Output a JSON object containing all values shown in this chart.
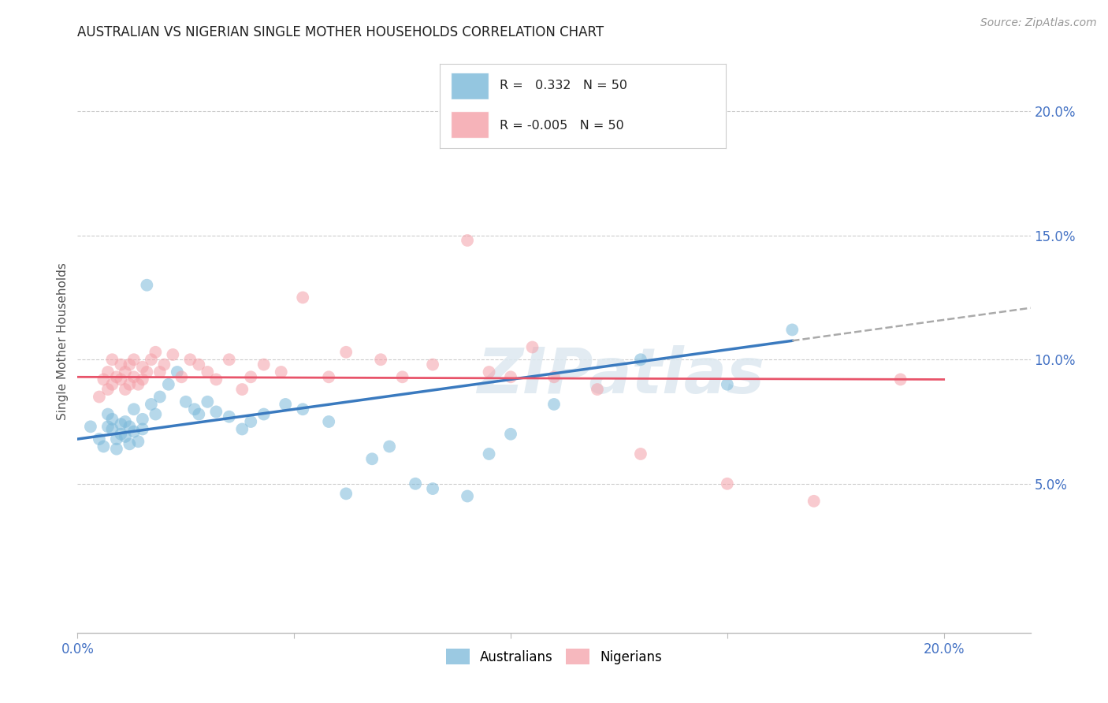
{
  "title": "AUSTRALIAN VS NIGERIAN SINGLE MOTHER HOUSEHOLDS CORRELATION CHART",
  "source": "Source: ZipAtlas.com",
  "ylabel": "Single Mother Households",
  "xlim": [
    0.0,
    0.22
  ],
  "ylim": [
    -0.01,
    0.225
  ],
  "yticks": [
    0.05,
    0.1,
    0.15,
    0.2
  ],
  "ytick_labels": [
    "5.0%",
    "10.0%",
    "15.0%",
    "20.0%"
  ],
  "xticks": [
    0.0,
    0.05,
    0.1,
    0.15,
    0.2
  ],
  "xtick_labels": [
    "0.0%",
    "",
    "",
    "",
    "20.0%"
  ],
  "australian_color": "#7ab8d9",
  "nigerian_color": "#f4a0a8",
  "australian_line_color": "#3a7abf",
  "nigerian_line_color": "#e8546a",
  "watermark": "ZIPatlas",
  "aus_x": [
    0.003,
    0.005,
    0.006,
    0.007,
    0.007,
    0.008,
    0.008,
    0.009,
    0.009,
    0.01,
    0.01,
    0.011,
    0.011,
    0.012,
    0.012,
    0.013,
    0.013,
    0.014,
    0.015,
    0.015,
    0.016,
    0.017,
    0.018,
    0.019,
    0.021,
    0.023,
    0.025,
    0.027,
    0.028,
    0.03,
    0.032,
    0.035,
    0.038,
    0.04,
    0.043,
    0.048,
    0.052,
    0.058,
    0.062,
    0.068,
    0.072,
    0.078,
    0.082,
    0.09,
    0.095,
    0.1,
    0.11,
    0.13,
    0.15,
    0.165
  ],
  "aus_y": [
    0.073,
    0.068,
    0.065,
    0.073,
    0.078,
    0.072,
    0.076,
    0.068,
    0.064,
    0.07,
    0.074,
    0.069,
    0.075,
    0.066,
    0.073,
    0.071,
    0.08,
    0.067,
    0.072,
    0.076,
    0.13,
    0.082,
    0.078,
    0.085,
    0.09,
    0.095,
    0.083,
    0.08,
    0.078,
    0.083,
    0.079,
    0.077,
    0.072,
    0.075,
    0.078,
    0.082,
    0.08,
    0.075,
    0.046,
    0.06,
    0.065,
    0.05,
    0.048,
    0.045,
    0.062,
    0.07,
    0.082,
    0.1,
    0.09,
    0.112
  ],
  "nig_x": [
    0.005,
    0.006,
    0.007,
    0.007,
    0.008,
    0.008,
    0.009,
    0.01,
    0.01,
    0.011,
    0.011,
    0.012,
    0.012,
    0.013,
    0.013,
    0.014,
    0.015,
    0.015,
    0.016,
    0.017,
    0.018,
    0.019,
    0.02,
    0.022,
    0.024,
    0.026,
    0.028,
    0.03,
    0.032,
    0.035,
    0.038,
    0.04,
    0.043,
    0.047,
    0.052,
    0.058,
    0.062,
    0.07,
    0.075,
    0.082,
    0.09,
    0.095,
    0.1,
    0.105,
    0.11,
    0.12,
    0.13,
    0.15,
    0.17,
    0.19
  ],
  "nig_y": [
    0.085,
    0.092,
    0.088,
    0.095,
    0.09,
    0.1,
    0.093,
    0.092,
    0.098,
    0.088,
    0.095,
    0.09,
    0.098,
    0.093,
    0.1,
    0.09,
    0.092,
    0.097,
    0.095,
    0.1,
    0.103,
    0.095,
    0.098,
    0.102,
    0.093,
    0.1,
    0.098,
    0.095,
    0.092,
    0.1,
    0.088,
    0.093,
    0.098,
    0.095,
    0.125,
    0.093,
    0.103,
    0.1,
    0.093,
    0.098,
    0.148,
    0.095,
    0.093,
    0.105,
    0.093,
    0.088,
    0.062,
    0.05,
    0.043,
    0.092
  ],
  "background_color": "#ffffff",
  "grid_color": "#cccccc",
  "aus_intercept": 0.068,
  "aus_slope": 0.24,
  "nig_intercept": 0.093,
  "nig_slope": -0.005
}
